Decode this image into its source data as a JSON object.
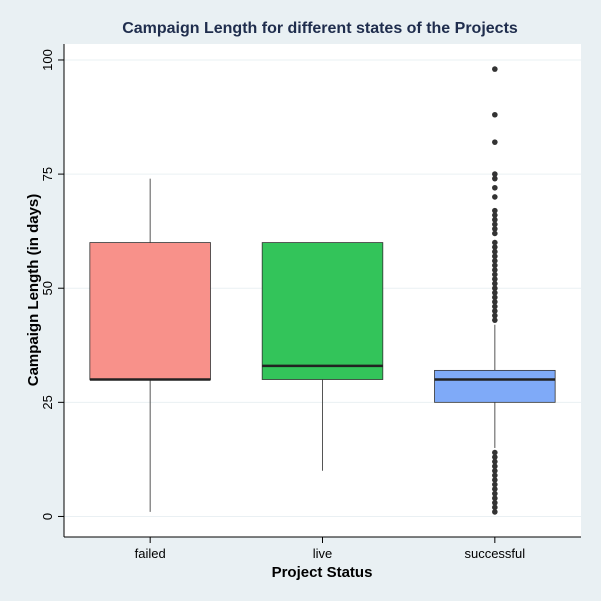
{
  "chart_data": {
    "type": "box",
    "title": "Campaign Length for different states of the Projects",
    "xlabel": "Project Status",
    "ylabel": "Campaign Length (in days)",
    "ylim": [
      -4.5,
      103.5
    ],
    "yticks": [
      0,
      25,
      50,
      75,
      100
    ],
    "ytick_labels": [
      "0",
      "25",
      "50",
      "75",
      "100"
    ],
    "grid": true,
    "legend": "none",
    "categories": [
      "failed",
      "live",
      "successful"
    ],
    "boxes": [
      {
        "category": "failed",
        "color": "#f8918a",
        "min": 1,
        "q1": 30,
        "median": 30,
        "q3": 60,
        "max": 74,
        "outliers": []
      },
      {
        "category": "live",
        "color": "#33c45a",
        "min": 10,
        "q1": 30,
        "median": 33,
        "q3": 60,
        "max": 60,
        "outliers": []
      },
      {
        "category": "successful",
        "color": "#7faaf8",
        "min": 15,
        "q1": 25,
        "median": 30,
        "q3": 32,
        "max": 42,
        "outliers": [
          1,
          2,
          3,
          4,
          5,
          6,
          7,
          8,
          9,
          10,
          11,
          12,
          13,
          14,
          43,
          44,
          45,
          46,
          47,
          48,
          49,
          50,
          51,
          52,
          53,
          54,
          55,
          56,
          57,
          58,
          59,
          60,
          62,
          63,
          64,
          65,
          66,
          67,
          70,
          72,
          74,
          75,
          82,
          88,
          98
        ]
      }
    ]
  }
}
